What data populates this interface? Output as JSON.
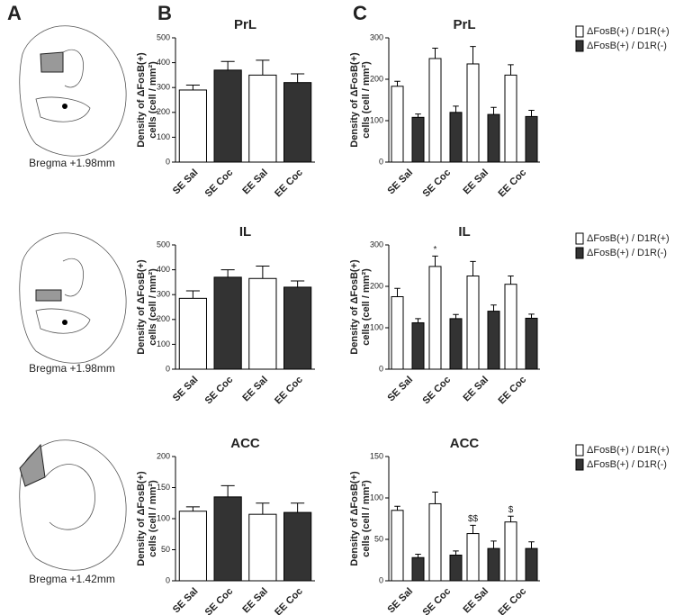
{
  "panel_labels": [
    "A",
    "B",
    "C"
  ],
  "bregma_labels": [
    "Bregma +1.98mm",
    "Bregma +1.98mm",
    "Bregma +1.42mm"
  ],
  "chart_data": [
    {
      "type": "bar",
      "title": "PrL",
      "ylabel": [
        "Density of ΔFosB(+)",
        "cells (cell / mm²)"
      ],
      "categories": [
        "SE Sal",
        "SE Coc",
        "EE Sal",
        "EE Coc"
      ],
      "values": [
        290,
        370,
        350,
        320
      ],
      "errors": [
        20,
        35,
        60,
        35
      ],
      "colors": [
        "#ffffff",
        "#333333",
        "#ffffff",
        "#333333"
      ],
      "ylim": [
        0,
        500
      ],
      "yticks": [
        0,
        100,
        200,
        300,
        400,
        500
      ]
    },
    {
      "type": "bar",
      "title": "IL",
      "ylabel": [
        "Density of ΔFosB(+)",
        "cells (cell / mm²)"
      ],
      "categories": [
        "SE Sal",
        "SE Coc",
        "EE Sal",
        "EE Coc"
      ],
      "values": [
        285,
        370,
        365,
        330
      ],
      "errors": [
        30,
        30,
        50,
        25
      ],
      "colors": [
        "#ffffff",
        "#333333",
        "#ffffff",
        "#333333"
      ],
      "ylim": [
        0,
        500
      ],
      "yticks": [
        0,
        100,
        200,
        300,
        400,
        500
      ]
    },
    {
      "type": "bar",
      "title": "ACC",
      "ylabel": [
        "Density of ΔFosB(+)",
        "cells (cell / mm²)"
      ],
      "categories": [
        "SE Sal",
        "SE Coc",
        "EE Sal",
        "EE Coc"
      ],
      "values": [
        112,
        135,
        107,
        110
      ],
      "errors": [
        7,
        18,
        18,
        15
      ],
      "colors": [
        "#ffffff",
        "#333333",
        "#ffffff",
        "#333333"
      ],
      "ylim": [
        0,
        200
      ],
      "yticks": [
        0,
        50,
        100,
        150,
        200
      ]
    },
    {
      "type": "bar",
      "title": "PrL",
      "ylabel": [
        "Density of ΔFosB(+)",
        "cells (cell / mm²)"
      ],
      "categories": [
        "SE Sal",
        "SE Coc",
        "EE Sal",
        "EE Coc"
      ],
      "series": [
        {
          "name": "ΔFosB(+) / D1R(+)",
          "color": "#ffffff",
          "values": [
            183,
            250,
            237,
            210
          ],
          "errors": [
            12,
            25,
            42,
            25
          ]
        },
        {
          "name": "ΔFosB(+) / D1R(-)",
          "color": "#333333",
          "values": [
            108,
            120,
            115,
            110
          ],
          "errors": [
            8,
            15,
            17,
            15
          ]
        }
      ],
      "ylim": [
        0,
        300
      ],
      "yticks": [
        0,
        100,
        200,
        300
      ]
    },
    {
      "type": "bar",
      "title": "IL",
      "ylabel": [
        "Density of ΔFosB(+)",
        "cells (cell / mm²)"
      ],
      "categories": [
        "SE Sal",
        "SE Coc",
        "EE Sal",
        "EE Coc"
      ],
      "series": [
        {
          "name": "ΔFosB(+) / D1R(+)",
          "color": "#ffffff",
          "values": [
            175,
            248,
            225,
            205
          ],
          "errors": [
            20,
            25,
            35,
            20
          ],
          "annotations": [
            null,
            "*",
            null,
            null
          ]
        },
        {
          "name": "ΔFosB(+) / D1R(-)",
          "color": "#333333",
          "values": [
            112,
            122,
            140,
            123
          ],
          "errors": [
            10,
            10,
            15,
            10
          ]
        }
      ],
      "ylim": [
        0,
        300
      ],
      "yticks": [
        0,
        100,
        200,
        300
      ]
    },
    {
      "type": "bar",
      "title": "ACC",
      "ylabel": [
        "Density of ΔFosB(+)",
        "cells (cell / mm²)"
      ],
      "categories": [
        "SE Sal",
        "SE Coc",
        "EE Sal",
        "EE Coc"
      ],
      "series": [
        {
          "name": "ΔFosB(+) / D1R(+)",
          "color": "#ffffff",
          "values": [
            85,
            93,
            57,
            71
          ],
          "errors": [
            5,
            14,
            10,
            7
          ],
          "annotations": [
            null,
            null,
            "$$",
            "$"
          ]
        },
        {
          "name": "ΔFosB(+) / D1R(-)",
          "color": "#333333",
          "values": [
            28,
            31,
            39,
            39
          ],
          "errors": [
            4,
            5,
            9,
            8
          ]
        }
      ],
      "ylim": [
        0,
        150
      ],
      "yticks": [
        0,
        50,
        100,
        150
      ]
    }
  ]
}
